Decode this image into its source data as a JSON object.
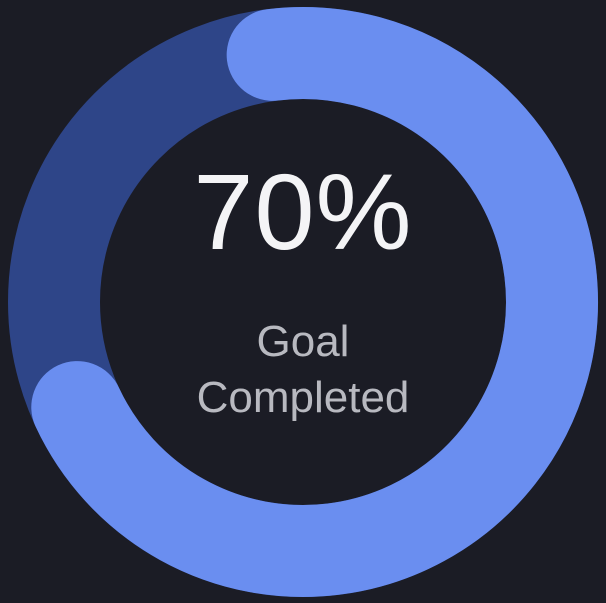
{
  "goal_widget": {
    "progress": 0.7,
    "percent_label": "70%",
    "caption_line1": "Goal",
    "caption_line2": "Completed"
  },
  "colors": {
    "background": "#1b1c25",
    "track": "#2e4588",
    "progress": "#6a8ef0",
    "text_primary": "#f4f4f6",
    "text_secondary": "#b8b9c0"
  }
}
